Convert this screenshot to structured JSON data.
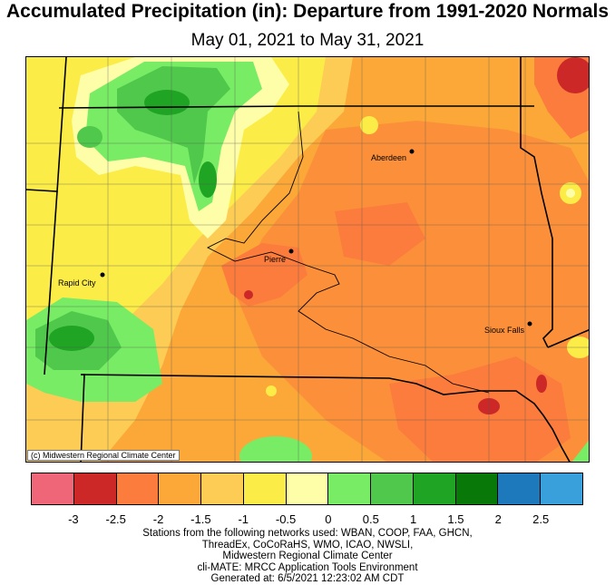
{
  "title": "Accumulated Precipitation (in): Departure from 1991-2020 Normals",
  "subtitle": "May 01, 2021 to May 31, 2021",
  "credit": "(c) Midwestern Regional Climate Center",
  "cities": [
    {
      "name": "Aberdeen"
    },
    {
      "name": "Pierre"
    },
    {
      "name": "Rapid City"
    },
    {
      "name": "Sioux Falls"
    }
  ],
  "legend": {
    "colors": [
      "#ee6677",
      "#cc2828",
      "#fb7c3c",
      "#fca838",
      "#fccc55",
      "#fcec48",
      "#fefea8",
      "#78ec64",
      "#50c84c",
      "#20a424",
      "#087808",
      "#1e78bc",
      "#3aa0dc"
    ],
    "ticks": [
      "-3",
      "-2.5",
      "-2",
      "-1.5",
      "-1",
      "-0.5",
      "0",
      "0.5",
      "1",
      "1.5",
      "2",
      "2.5"
    ]
  },
  "footer": {
    "line1": "Stations from the following networks used: WBAN, COOP, FAA, GHCN,",
    "line2": "ThreadEx, CoCoRaHS, WMO, ICAO, NWSLI,",
    "line3": "Midwestern Regional Climate Center",
    "line4": "cli-MATE: MRCC Application Tools Environment",
    "line5": "Generated at: 6/5/2021 12:23:02 AM CDT"
  }
}
